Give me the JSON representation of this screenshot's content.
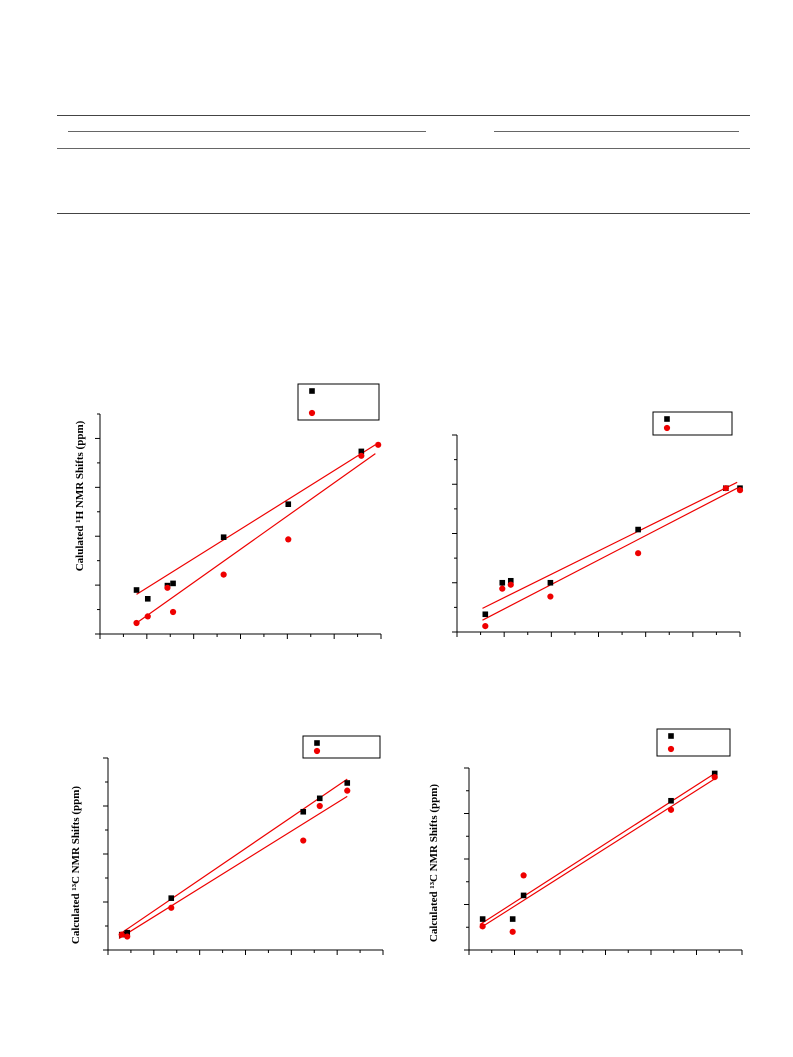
{
  "chart_data": [
    {
      "type": "scatter",
      "ylabel": "Calulated ¹H NMR Shifts (ppm)",
      "xlim": [
        0,
        10
      ],
      "ylim": [
        0,
        10
      ],
      "legend": "top-right",
      "series": [
        {
          "name": "",
          "color": "#000000",
          "marker": "square",
          "x": [
            1.3,
            1.7,
            2.4,
            2.6,
            4.4,
            6.7,
            9.3
          ],
          "y": [
            2.0,
            1.6,
            2.2,
            2.3,
            4.4,
            5.9,
            8.3
          ]
        },
        {
          "name": "",
          "color": "#ee0000",
          "marker": "circle",
          "x": [
            1.3,
            1.7,
            2.4,
            2.6,
            4.4,
            6.7,
            9.3,
            9.9
          ],
          "y": [
            0.5,
            0.8,
            2.1,
            1.0,
            2.7,
            4.3,
            8.1,
            8.6
          ]
        }
      ],
      "fits": [
        {
          "color": "#ee0000",
          "x": [
            1.3,
            9.8
          ],
          "y": [
            1.8,
            8.6
          ]
        },
        {
          "color": "#ee0000",
          "x": [
            1.3,
            9.8
          ],
          "y": [
            0.5,
            8.2
          ]
        }
      ]
    },
    {
      "type": "scatter",
      "ylabel": "",
      "xlim": [
        0,
        10
      ],
      "ylim": [
        0,
        10
      ],
      "legend": "top-right",
      "series": [
        {
          "name": "",
          "color": "#000000",
          "marker": "square",
          "x": [
            1.0,
            1.6,
            1.9,
            3.3,
            6.4,
            9.5,
            10.0
          ],
          "y": [
            0.9,
            2.5,
            2.6,
            2.5,
            5.2,
            7.3,
            7.3
          ]
        },
        {
          "name": "",
          "color": "#ee0000",
          "marker": "circle",
          "x": [
            1.0,
            1.6,
            1.9,
            3.3,
            6.4,
            9.5,
            10.0
          ],
          "y": [
            0.3,
            2.2,
            2.4,
            1.8,
            4.0,
            7.3,
            7.2
          ]
        }
      ],
      "fits": [
        {
          "color": "#ee0000",
          "x": [
            0.9,
            9.9
          ],
          "y": [
            1.2,
            7.6
          ]
        },
        {
          "color": "#ee0000",
          "x": [
            0.9,
            9.9
          ],
          "y": [
            0.6,
            7.3
          ]
        }
      ]
    },
    {
      "type": "scatter",
      "ylabel": "Calculated ¹³C NMR Shifts (ppm)",
      "xlim": [
        0,
        10
      ],
      "ylim": [
        0,
        10
      ],
      "legend": "top-right",
      "series": [
        {
          "name": "",
          "color": "#000000",
          "marker": "square",
          "x": [
            0.5,
            0.7,
            2.3,
            7.1,
            7.7,
            8.7
          ],
          "y": [
            0.8,
            0.9,
            2.7,
            7.2,
            7.9,
            8.7
          ]
        },
        {
          "name": "",
          "color": "#ee0000",
          "marker": "circle",
          "x": [
            0.5,
            0.7,
            2.3,
            7.1,
            7.7,
            8.7
          ],
          "y": [
            0.8,
            0.7,
            2.2,
            5.7,
            7.5,
            8.3
          ]
        }
      ],
      "fits": [
        {
          "color": "#ee0000",
          "x": [
            0.4,
            8.7
          ],
          "y": [
            0.8,
            8.9
          ]
        },
        {
          "color": "#ee0000",
          "x": [
            0.4,
            8.7
          ],
          "y": [
            0.6,
            8.0
          ]
        }
      ]
    },
    {
      "type": "scatter",
      "ylabel": "Calculated ¹³C NMR Shifts (ppm)",
      "xlim": [
        0,
        10
      ],
      "ylim": [
        0,
        10
      ],
      "legend": "top-right",
      "series": [
        {
          "name": "",
          "color": "#000000",
          "marker": "square",
          "x": [
            0.5,
            1.6,
            2.0,
            7.4,
            9.0
          ],
          "y": [
            1.7,
            1.7,
            3.0,
            8.2,
            9.7
          ]
        },
        {
          "name": "",
          "color": "#ee0000",
          "marker": "circle",
          "x": [
            0.5,
            1.6,
            2.0,
            7.4,
            9.0
          ],
          "y": [
            1.3,
            1.0,
            4.1,
            7.7,
            9.5
          ]
        }
      ],
      "fits": [
        {
          "color": "#ee0000",
          "x": [
            0.4,
            9.0
          ],
          "y": [
            1.4,
            9.7
          ]
        },
        {
          "color": "#ee0000",
          "x": [
            0.4,
            9.0
          ],
          "y": [
            1.2,
            9.4
          ]
        }
      ]
    }
  ]
}
